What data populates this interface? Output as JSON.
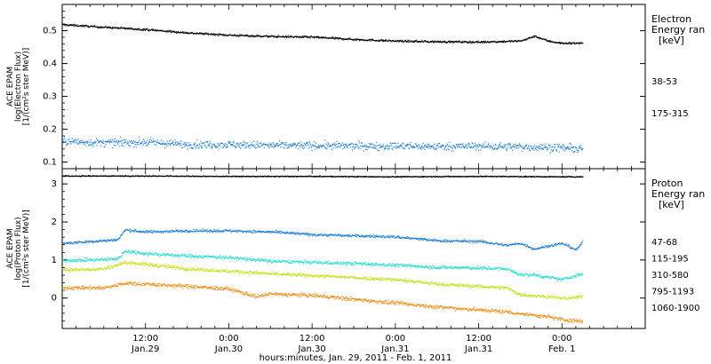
{
  "xlabel": "hours:minutes, Jan. 29, 2011 - Feb.  1, 2011",
  "x_ticks": [
    {
      "h": 12,
      "time": "12:00",
      "date": "Jan.29"
    },
    {
      "h": 24,
      "time": "0:00",
      "date": "Jan.30"
    },
    {
      "h": 36,
      "time": "12:00",
      "date": "Jan.30"
    },
    {
      "h": 48,
      "time": "0:00",
      "date": "Jan.31"
    },
    {
      "h": 60,
      "time": "12:00",
      "date": "Jan.31"
    },
    {
      "h": 72,
      "time": "0:00",
      "date": "Feb. 1"
    }
  ],
  "chart_data": [
    {
      "type": "scatter",
      "ylabel": [
        "ACE EPAM",
        "log(Electron Flux)",
        "[1/(cm²s ster MeV)]"
      ],
      "ylim": [
        0.08,
        0.58
      ],
      "yticks": [
        0.1,
        0.2,
        0.3,
        0.4,
        0.5
      ],
      "xlim_hours": [
        0,
        84
      ],
      "legend_title": [
        "Electron",
        "Energy ran",
        "[keV]"
      ],
      "series": [
        {
          "name": "38-53",
          "color": "#000000",
          "spread": 0.003,
          "points": [
            [
              0,
              0.52
            ],
            [
              6,
              0.512
            ],
            [
              12,
              0.505
            ],
            [
              18,
              0.495
            ],
            [
              24,
              0.488
            ],
            [
              30,
              0.484
            ],
            [
              36,
              0.482
            ],
            [
              42,
              0.475
            ],
            [
              48,
              0.47
            ],
            [
              54,
              0.468
            ],
            [
              60,
              0.467
            ],
            [
              66,
              0.47
            ],
            [
              68,
              0.485
            ],
            [
              70,
              0.47
            ],
            [
              72,
              0.463
            ],
            [
              75,
              0.464
            ]
          ]
        },
        {
          "name": "175-315",
          "color": "#1f7fd6",
          "spread": 0.012,
          "points": [
            [
              0,
              0.165
            ],
            [
              6,
              0.16
            ],
            [
              12,
              0.162
            ],
            [
              18,
              0.155
            ],
            [
              24,
              0.155
            ],
            [
              30,
              0.152
            ],
            [
              36,
              0.152
            ],
            [
              42,
              0.15
            ],
            [
              48,
              0.15
            ],
            [
              54,
              0.149
            ],
            [
              60,
              0.15
            ],
            [
              66,
              0.148
            ],
            [
              72,
              0.145
            ],
            [
              75,
              0.14
            ]
          ]
        }
      ]
    },
    {
      "type": "scatter",
      "ylabel": [
        "ACE EPAM",
        "log(Proton Flux)",
        "[1/(cm²s ster MeV)]"
      ],
      "ylim": [
        -0.8,
        3.4
      ],
      "yticks": [
        0,
        1,
        2,
        3
      ],
      "xlim_hours": [
        0,
        84
      ],
      "legend_title": [
        "Proton",
        "Energy ran",
        "[keV]"
      ],
      "series": [
        {
          "name": "47-68",
          "color": "#000000",
          "spread": 0.012,
          "points": [
            [
              0,
              3.22
            ],
            [
              12,
              3.22
            ],
            [
              24,
              3.21
            ],
            [
              36,
              3.21
            ],
            [
              48,
              3.2
            ],
            [
              60,
              3.21
            ],
            [
              72,
              3.2
            ],
            [
              75,
              3.2
            ]
          ]
        },
        {
          "name": "115-195",
          "color": "#1f7fd6",
          "spread": 0.035,
          "points": [
            [
              0,
              1.45
            ],
            [
              6,
              1.52
            ],
            [
              8,
              1.55
            ],
            [
              9,
              1.8
            ],
            [
              12,
              1.75
            ],
            [
              18,
              1.78
            ],
            [
              24,
              1.78
            ],
            [
              30,
              1.75
            ],
            [
              36,
              1.68
            ],
            [
              42,
              1.65
            ],
            [
              48,
              1.62
            ],
            [
              54,
              1.52
            ],
            [
              60,
              1.5
            ],
            [
              64,
              1.4
            ],
            [
              66,
              1.45
            ],
            [
              68,
              1.3
            ],
            [
              70,
              1.38
            ],
            [
              72,
              1.45
            ],
            [
              74,
              1.28
            ],
            [
              75,
              1.5
            ]
          ]
        },
        {
          "name": "310-580",
          "color": "#22ddd0",
          "spread": 0.045,
          "points": [
            [
              0,
              1.0
            ],
            [
              6,
              1.02
            ],
            [
              8,
              1.05
            ],
            [
              9,
              1.25
            ],
            [
              12,
              1.18
            ],
            [
              18,
              1.12
            ],
            [
              24,
              1.08
            ],
            [
              30,
              0.98
            ],
            [
              36,
              0.95
            ],
            [
              42,
              0.92
            ],
            [
              48,
              0.88
            ],
            [
              54,
              0.82
            ],
            [
              60,
              0.8
            ],
            [
              64,
              0.78
            ],
            [
              66,
              0.62
            ],
            [
              68,
              0.62
            ],
            [
              70,
              0.55
            ],
            [
              72,
              0.5
            ],
            [
              75,
              0.65
            ]
          ]
        },
        {
          "name": "795-1193",
          "color": "#c8e018",
          "spread": 0.045,
          "points": [
            [
              0,
              0.75
            ],
            [
              6,
              0.78
            ],
            [
              9,
              0.95
            ],
            [
              12,
              0.9
            ],
            [
              18,
              0.78
            ],
            [
              24,
              0.72
            ],
            [
              30,
              0.65
            ],
            [
              36,
              0.6
            ],
            [
              42,
              0.55
            ],
            [
              48,
              0.5
            ],
            [
              54,
              0.38
            ],
            [
              60,
              0.32
            ],
            [
              64,
              0.28
            ],
            [
              66,
              0.1
            ],
            [
              70,
              0.05
            ],
            [
              72,
              0.0
            ],
            [
              75,
              0.05
            ]
          ]
        },
        {
          "name": "1060-1900",
          "color": "#ee8a10",
          "spread": 0.05,
          "points": [
            [
              0,
              0.28
            ],
            [
              6,
              0.28
            ],
            [
              9,
              0.4
            ],
            [
              12,
              0.38
            ],
            [
              18,
              0.32
            ],
            [
              24,
              0.25
            ],
            [
              28,
              0.05
            ],
            [
              30,
              0.12
            ],
            [
              36,
              0.08
            ],
            [
              42,
              -0.02
            ],
            [
              48,
              -0.12
            ],
            [
              54,
              -0.22
            ],
            [
              60,
              -0.3
            ],
            [
              64,
              -0.35
            ],
            [
              66,
              -0.4
            ],
            [
              70,
              -0.48
            ],
            [
              72,
              -0.55
            ],
            [
              75,
              -0.6
            ]
          ]
        }
      ]
    }
  ]
}
